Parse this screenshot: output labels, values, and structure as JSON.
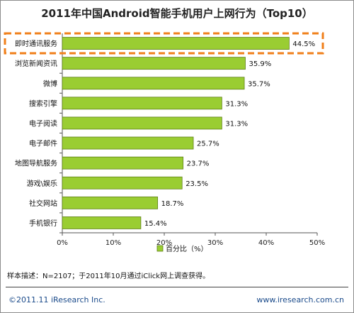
{
  "chart_data": {
    "type": "bar",
    "orientation": "horizontal",
    "title": "2011年中国Android智能手机用户上网行为（Top10）",
    "categories": [
      "即时通讯服务",
      "浏览新闻资讯",
      "微博",
      "搜索引擎",
      "电子阅读",
      "电子邮件",
      "地图导航服务",
      "游戏\\娱乐",
      "社交网站",
      "手机银行"
    ],
    "series": [
      {
        "name": "百分比（%）",
        "values": [
          44.5,
          35.9,
          35.7,
          31.3,
          31.3,
          25.7,
          23.7,
          23.5,
          18.7,
          15.4
        ],
        "value_labels": [
          "44.5%",
          "35.9%",
          "35.7%",
          "31.3%",
          "31.3%",
          "25.7%",
          "23.7%",
          "23.5%",
          "18.7%",
          "15.4%"
        ]
      }
    ],
    "xlim": [
      0,
      50
    ],
    "x_ticks": [
      "0%",
      "10%",
      "20%",
      "30%",
      "40%",
      "50%"
    ],
    "grid": false,
    "legend_position": "bottom",
    "highlighted_category": "即时通讯服务",
    "colors": {
      "bar": "#9acd32",
      "bar_stroke": "#5f7f1a",
      "highlight": "#f07f1a"
    }
  },
  "footer": {
    "note": "样本描述：N=2107；于2011年10月通过iClick网上调查获得。",
    "copyright": "©2011.11 iResearch Inc.",
    "website": "www.iresearch.com.cn"
  }
}
